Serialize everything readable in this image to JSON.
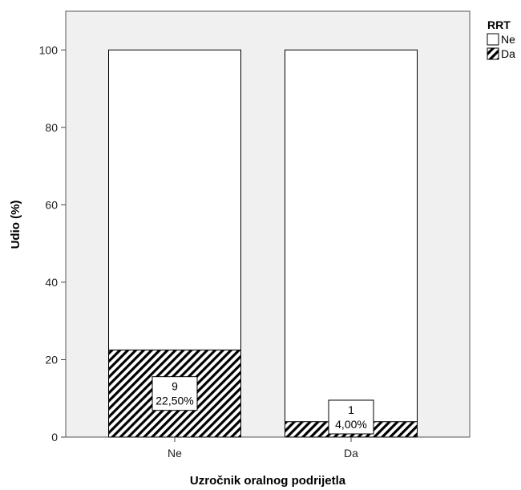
{
  "chart_data": {
    "type": "bar",
    "stacked": true,
    "percent": true,
    "categories": [
      "Ne",
      "Da"
    ],
    "series": [
      {
        "name": "Ne",
        "values": [
          77.5,
          96.0
        ],
        "pattern": "solid",
        "color": "#ffffff"
      },
      {
        "name": "Da",
        "values": [
          22.5,
          4.0
        ],
        "pattern": "hatch",
        "color": "#000000"
      }
    ],
    "data_labels": [
      {
        "category": "Ne",
        "count": "9",
        "percent": "22,50%"
      },
      {
        "category": "Da",
        "count": "1",
        "percent": "4,00%"
      }
    ],
    "xlabel": "Uzročnik oralnog podrijetla",
    "ylabel": "Udio (%)",
    "ylim": [
      0,
      110
    ],
    "yticks": [
      0,
      20,
      40,
      60,
      80,
      100
    ],
    "grid": false,
    "background_color": "#f0f0f0",
    "legend": {
      "title": "RRT",
      "position": "top-right"
    }
  }
}
